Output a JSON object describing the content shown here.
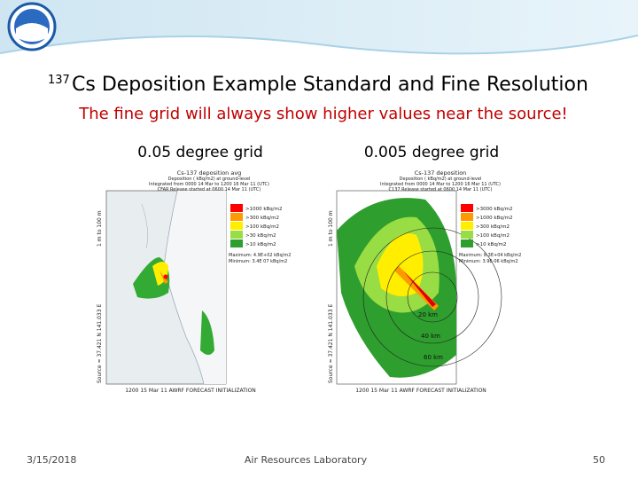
{
  "header": {
    "title_superscript": "137",
    "title": "Cs Deposition Example Standard and Fine Resolution",
    "subtitle": "The fine grid will always show higher values near the source!"
  },
  "panels": [
    {
      "caption": "0.05 degree grid",
      "map_title": [
        "Cs-137 deposition avg",
        "Deposition ( kBq/m2) at ground-level",
        "Integrated from 0000 14 Mar to 1200 16 Mar 11 (UTC)",
        "CFAR Release started at 0600 14 Mar 11 (UTC)"
      ],
      "legend": [
        ">1000 kBq/m2",
        ">300 kBq/m2",
        ">100 kBq/m2",
        ">30 kBq/m2",
        ">10 kBq/m2"
      ],
      "stats": [
        "Maximum: 4.9E+02 kBq/m2",
        "Minimum: 3.4E 07 kBq/m2"
      ],
      "source_label": "Source ≈ 37.421 N 141.033 E",
      "level_label": "1 m to 100 m",
      "footnote": "1200 15 Mar 11 AWRF FORECAST INITIALIZATION"
    },
    {
      "caption": "0.005 degree grid",
      "map_title": [
        "Cs-137 deposition",
        "Deposition ( kBq/m2) at ground-level",
        "Integrated from 0000 14 Mar to 1200 16 Mar 11 (UTC)",
        "C137 Release started at 0600 14 Mar 11 (UTC)"
      ],
      "legend": [
        ">3000 kBq/m2",
        ">1000 kBq/m2",
        ">300 kBq/m2",
        ">100 kBq/m2",
        ">10 kBq/m2"
      ],
      "stats": [
        "Maximum: 8.3E+04 kBq/m2",
        "Minimum: 3.9E-06 kBq/m2"
      ],
      "source_label": "Source ≈ 37.421 N 141.033 E",
      "level_label": "1 m to 100 m",
      "footnote": "1200 15 Mar 11 AWRF FORECAST INITIALIZATION",
      "ring_labels": [
        "20 km",
        "40 km",
        "60 km"
      ]
    }
  ],
  "footer": {
    "date": "3/15/2018",
    "organization": "Air Resources Laboratory",
    "page": "50"
  }
}
